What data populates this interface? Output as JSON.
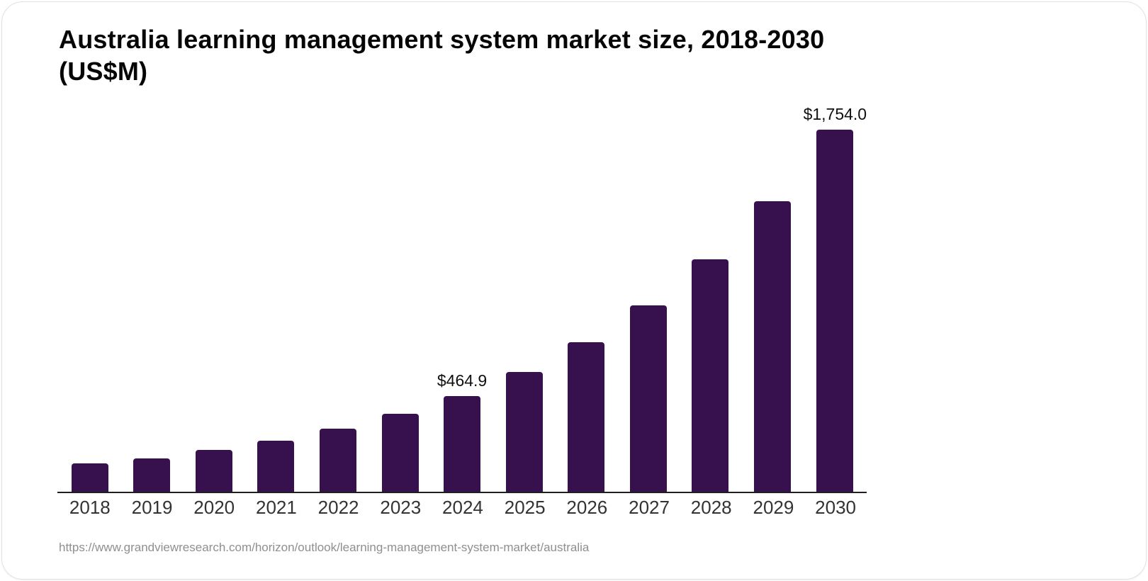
{
  "card": {
    "title_line1": "Australia learning management system market size, 2018-2030",
    "title_line2": "(US$M)",
    "source_url": "https://www.grandviewresearch.com/horizon/outlook/learning-management-system-market/australia"
  },
  "colors": {
    "bar": "#36114d",
    "axis_line": "#1f1f1f",
    "title_text": "#060606",
    "tick_text": "#333333",
    "value_label_text": "#101010",
    "source_text": "#8f8f8f",
    "card_border": "#e2e2e2",
    "background": "#ffffff"
  },
  "chart_data": {
    "type": "bar",
    "title": "Australia learning management system market size, 2018-2030 (US$M)",
    "unit": "US$M",
    "categories": [
      "2018",
      "2019",
      "2020",
      "2021",
      "2022",
      "2023",
      "2024",
      "2025",
      "2026",
      "2027",
      "2028",
      "2029",
      "2030"
    ],
    "values": [
      138,
      162,
      201,
      246,
      305,
      377,
      464.9,
      580,
      724,
      903,
      1127,
      1406,
      1754
    ],
    "value_labels": [
      "",
      "",
      "",
      "",
      "",
      "",
      "$464.9",
      "",
      "",
      "",
      "",
      "",
      "$1,754.0"
    ],
    "xlabel": "",
    "ylabel": "",
    "ylim": [
      0,
      1754
    ],
    "grid": false,
    "legend": "none",
    "bar_color": "#36114d"
  }
}
